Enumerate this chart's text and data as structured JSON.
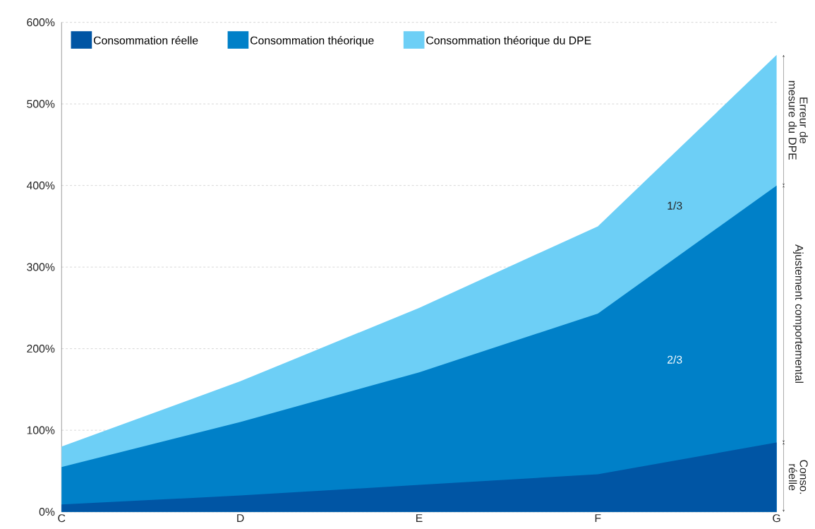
{
  "chart_data": {
    "type": "area",
    "categories": [
      "C",
      "D",
      "E",
      "F",
      "G"
    ],
    "series": [
      {
        "name": "Consommation réelle",
        "color": "#0055a4",
        "values": [
          9,
          20,
          33,
          46,
          85
        ]
      },
      {
        "name": "Consommation théorique",
        "color": "#0080c8",
        "values": [
          55,
          110,
          171,
          243,
          400
        ]
      },
      {
        "name": "Consommation théorique du DPE",
        "color": "#6dcff6",
        "values": [
          80,
          160,
          250,
          350,
          560
        ]
      }
    ],
    "ylim": [
      0,
      600
    ],
    "yticks": [
      {
        "value": 0,
        "label": "0%"
      },
      {
        "value": 100,
        "label": "100%"
      },
      {
        "value": 200,
        "label": "200%"
      },
      {
        "value": 300,
        "label": "300%"
      },
      {
        "value": 400,
        "label": "400%"
      },
      {
        "value": 500,
        "label": "500%"
      },
      {
        "value": 600,
        "label": "600%"
      }
    ],
    "grid": "y",
    "legend": "top",
    "annotations": [
      "Conso. réelle",
      "Ajustement comportemental",
      "Erreur de mesure du DPE",
      "1/3",
      "2/3"
    ]
  }
}
